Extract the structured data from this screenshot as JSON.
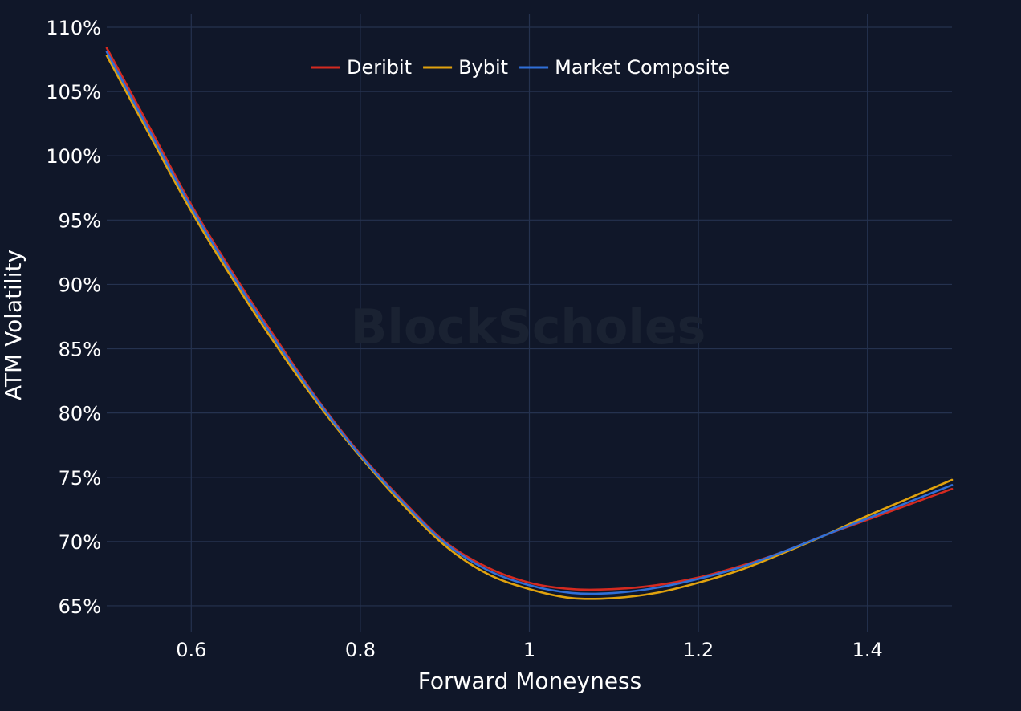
{
  "colors": {
    "background": "#101729",
    "grid": "#25324f",
    "watermark": "#1a2232"
  },
  "watermark": "BlockScholes",
  "chart_data": {
    "type": "line",
    "xlabel": "Forward Moneyness",
    "ylabel": "ATM Volatility",
    "xlim": [
      0.5,
      1.5
    ],
    "ylim": [
      63,
      111
    ],
    "x_ticks": [
      0.6,
      0.8,
      1.0,
      1.2,
      1.4
    ],
    "x_tick_labels": [
      "0.6",
      "0.8",
      "1",
      "1.2",
      "1.4"
    ],
    "y_ticks": [
      65,
      70,
      75,
      80,
      85,
      90,
      95,
      100,
      105,
      110
    ],
    "y_tick_labels": [
      "65%",
      "70%",
      "75%",
      "80%",
      "85%",
      "90%",
      "95%",
      "100%",
      "105%",
      "110%"
    ],
    "grid": true,
    "legend_position": "top-center",
    "series": [
      {
        "name": "Deribit",
        "color": "#d42a20",
        "x": [
          0.5,
          0.55,
          0.6,
          0.65,
          0.7,
          0.75,
          0.8,
          0.85,
          0.9,
          0.95,
          1.0,
          1.05,
          1.1,
          1.15,
          1.2,
          1.25,
          1.3,
          1.35,
          1.4,
          1.45,
          1.5
        ],
        "y": [
          108.4,
          102.3,
          96.2,
          90.8,
          85.8,
          81.0,
          76.8,
          73.2,
          70.0,
          68.0,
          66.8,
          66.3,
          66.3,
          66.6,
          67.2,
          68.1,
          69.2,
          70.5,
          71.7,
          72.9,
          74.1
        ]
      },
      {
        "name": "Bybit",
        "color": "#e0a20e",
        "x": [
          0.5,
          0.55,
          0.6,
          0.65,
          0.7,
          0.75,
          0.8,
          0.85,
          0.9,
          0.95,
          1.0,
          1.05,
          1.1,
          1.15,
          1.2,
          1.25,
          1.3,
          1.35,
          1.4,
          1.45,
          1.5
        ],
        "y": [
          107.8,
          101.7,
          95.7,
          90.3,
          85.3,
          80.7,
          76.6,
          72.9,
          69.7,
          67.5,
          66.3,
          65.6,
          65.6,
          66.0,
          66.8,
          67.8,
          69.1,
          70.5,
          72.0,
          73.4,
          74.8
        ]
      },
      {
        "name": "Market Composite",
        "color": "#2f6fd8",
        "x": [
          0.5,
          0.55,
          0.6,
          0.65,
          0.7,
          0.75,
          0.8,
          0.85,
          0.9,
          0.95,
          1.0,
          1.05,
          1.1,
          1.15,
          1.2,
          1.25,
          1.3,
          1.35,
          1.4,
          1.45,
          1.5
        ],
        "y": [
          108.1,
          102.0,
          96.0,
          90.6,
          85.6,
          80.9,
          76.7,
          73.1,
          69.9,
          67.8,
          66.6,
          66.0,
          66.0,
          66.4,
          67.1,
          68.0,
          69.2,
          70.5,
          71.8,
          73.1,
          74.4
        ]
      }
    ]
  }
}
